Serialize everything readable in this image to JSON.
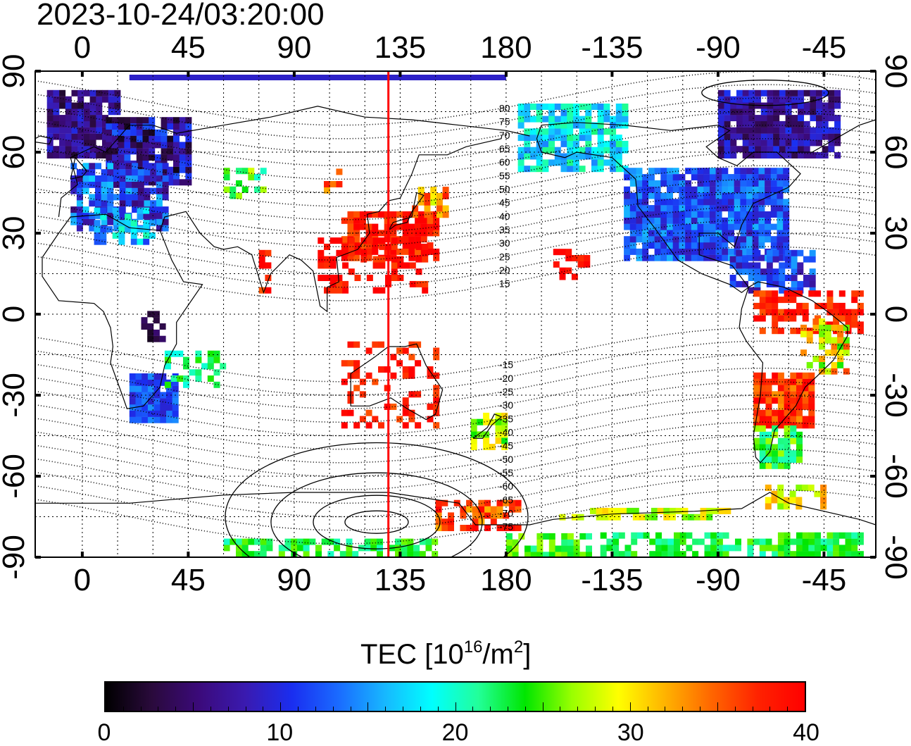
{
  "timestamp": "2023-10-24/03:20:00",
  "axes": {
    "top_ticks": [
      "0",
      "45",
      "90",
      "135",
      "180",
      "-135",
      "-90",
      "-45"
    ],
    "bottom_ticks": [
      "0",
      "45",
      "90",
      "135",
      "180",
      "-135",
      "-90",
      "-45"
    ],
    "left_ticks": [
      "90",
      "60",
      "30",
      "0",
      "-30",
      "-60",
      "-90"
    ],
    "right_ticks": [
      "90",
      "60",
      "30",
      "0",
      "-30",
      "-60",
      "-90"
    ],
    "top_tick_values": [
      0,
      45,
      90,
      135,
      180,
      225,
      270,
      315
    ],
    "lat_tick_values": [
      90,
      60,
      30,
      0,
      -30,
      -60,
      -90
    ]
  },
  "map": {
    "lon_range": [
      -20,
      337
    ],
    "lat_range": [
      -90,
      90
    ],
    "reference_meridian_lon": 130,
    "reference_meridian_color": "#ff0000",
    "magnetic_lat_labels": [
      "80",
      "75",
      "70",
      "65",
      "60",
      "55",
      "50",
      "45",
      "40",
      "35",
      "30",
      "25",
      "20",
      "15",
      "-15",
      "-20",
      "-25",
      "-30",
      "-35",
      "-40",
      "-45",
      "-50",
      "-55",
      "-60",
      "-65",
      "-70",
      "-75"
    ]
  },
  "colorbar": {
    "title_prefix": "TEC  [10",
    "title_exp1": "16",
    "title_mid": "/m",
    "title_exp2": "2",
    "title_suffix": "]",
    "min": 0,
    "max": 40,
    "tick_labels": [
      "0",
      "10",
      "20",
      "30",
      "40"
    ],
    "colors": [
      "#000000",
      "#2a0a3c",
      "#3b0a7a",
      "#3a1ab0",
      "#1a2ef0",
      "#1a6bff",
      "#17b8ff",
      "#00ffff",
      "#22ff99",
      "#00e600",
      "#99ff00",
      "#ffff00",
      "#ffb300",
      "#ff6600",
      "#ff2200",
      "#ff0000"
    ]
  }
}
